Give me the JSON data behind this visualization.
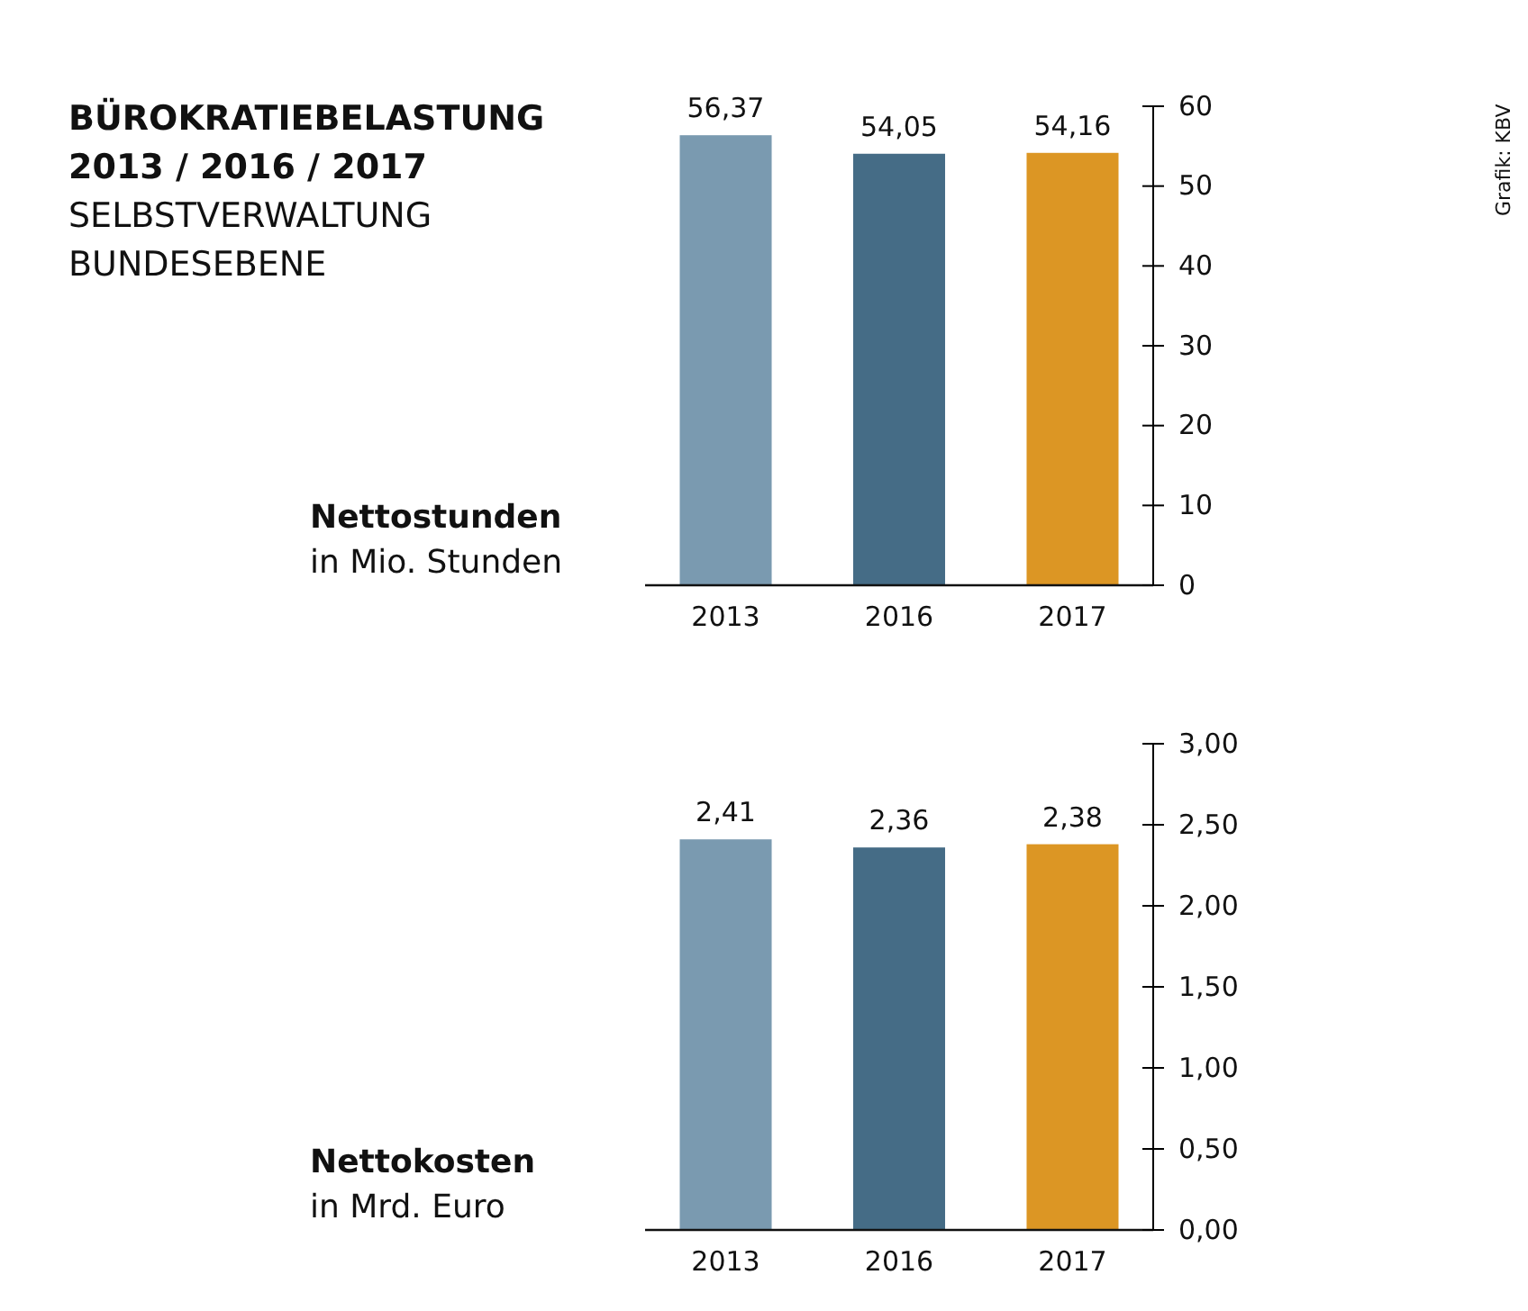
{
  "chart_data": [
    {
      "type": "bar",
      "title": "BÜROKRATIEBELASTUNG\n2013 / 2016 / 2017",
      "annotations": [
        "SELBSTVERWALTUNG",
        "BUNDESEBENE",
        "Grafik: KBV"
      ],
      "ylabel": "Nettostunden\nin Mio. Stunden",
      "categories": [
        "2013",
        "2016",
        "2017"
      ],
      "values": [
        56.37,
        54.05,
        54.16
      ],
      "colors": [
        "#7a9ab0",
        "#456c86",
        "#dc9624"
      ],
      "value_labels": [
        "56,37",
        "54,05",
        "54,16"
      ],
      "ylim": [
        0,
        60
      ],
      "yticks": [
        0,
        10,
        20,
        30,
        40,
        50,
        60
      ]
    },
    {
      "type": "bar",
      "ylabel": "Nettokosten\nin Mrd. Euro",
      "categories": [
        "2013",
        "2016",
        "2017"
      ],
      "values": [
        2.41,
        2.36,
        2.38
      ],
      "colors": [
        "#7a9ab0",
        "#456c86",
        "#dc9624"
      ],
      "value_labels": [
        "2,41",
        "2,36",
        "2,38"
      ],
      "ylim": [
        0,
        3
      ],
      "yticks": [
        {
          "value": 0,
          "label": "0,00"
        },
        {
          "value": 0.5,
          "label": "0,50"
        },
        {
          "value": 1,
          "label": "1,00"
        },
        {
          "value": 1.5,
          "label": "1,50"
        },
        {
          "value": 2,
          "label": "2,00"
        },
        {
          "value": 2.5,
          "label": "2,50"
        },
        {
          "value": 3,
          "label": "3,00"
        }
      ]
    }
  ]
}
